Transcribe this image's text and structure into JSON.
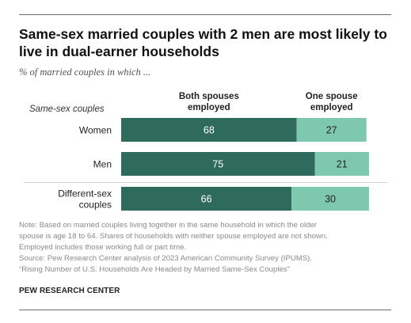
{
  "chart_data": {
    "type": "bar",
    "orientation": "horizontal",
    "stacked": true,
    "title": "Same-sex married couples with 2 men are most likely to live in dual-earner households",
    "subtitle": "% of married couples in which ...",
    "group_label": "Same-sex couples",
    "categories": [
      "Women",
      "Men",
      "Different-sex couples"
    ],
    "category_lines": [
      [
        "Women"
      ],
      [
        "Men"
      ],
      [
        "Different-sex",
        "couples"
      ]
    ],
    "series": [
      {
        "name": "Both spouses employed",
        "name_lines": [
          "Both spouses",
          "employed"
        ],
        "values": [
          68,
          75,
          66
        ],
        "color": "#2e6b5c"
      },
      {
        "name": "One spouse employed",
        "name_lines": [
          "One spouse",
          "employed"
        ],
        "values": [
          27,
          21,
          30
        ],
        "color": "#7ec8b0"
      }
    ],
    "xlim": [
      0,
      100
    ],
    "grid": false
  },
  "note_lines": [
    "Note: Based on married couples living together in the same household in which the older",
    "spouse is age 18 to 64. Shares of households with neither spouse employed are not shown.",
    "Employed includes those working full or part time.",
    "Source: Pew Research Center analysis of 2023 American Community Survey (IPUMS).",
    "“Rising Number of U.S. Households Are Headed by Married Same-Sex Couples”"
  ],
  "source_label": "PEW RESEARCH CENTER"
}
